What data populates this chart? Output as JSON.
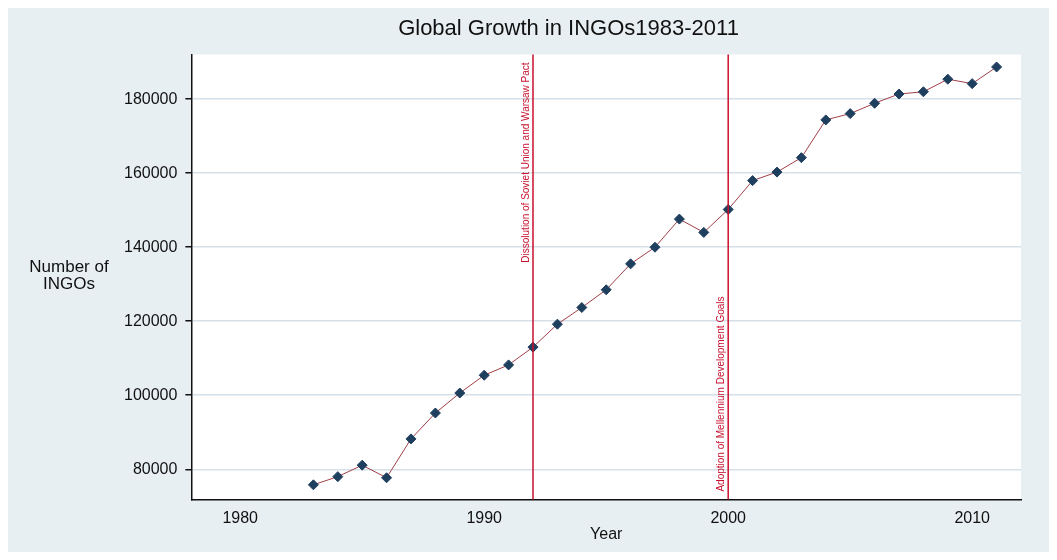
{
  "chart_data": {
    "type": "line",
    "title": "Global Growth in INGOs1983-2011",
    "xlabel": "Year",
    "ylabel": "Number of INGOs",
    "x": [
      1983,
      1984,
      1985,
      1986,
      1987,
      1988,
      1989,
      1990,
      1991,
      1992,
      1993,
      1994,
      1995,
      1996,
      1997,
      1998,
      1999,
      2000,
      2001,
      2002,
      2003,
      2004,
      2005,
      2006,
      2007,
      2008,
      2009,
      2010,
      2011
    ],
    "series": [
      {
        "color": "#1f3f5f",
        "values": [
          75800,
          78000,
          81100,
          77700,
          88200,
          95200,
          100600,
          105400,
          108200,
          113000,
          119200,
          123700,
          128500,
          135500,
          140000,
          147600,
          144000,
          150200,
          158000,
          160300,
          164200,
          174400,
          176100,
          178900,
          181400,
          182000,
          185400,
          184200,
          188700
        ]
      }
    ],
    "xlim": [
      1978,
      2012
    ],
    "xticks": [
      1980,
      1990,
      2000,
      2010
    ],
    "ylim": [
      71800,
      192100
    ],
    "yticks": [
      80000,
      100000,
      120000,
      140000,
      160000,
      180000
    ],
    "grid": "y",
    "marker": "diamond",
    "line_style": "solid",
    "ref_lines": [
      {
        "axis": "x",
        "value": 1992,
        "label": "Dissolution of Soviet Union and Warsaw Pact",
        "color": "#c8102e"
      },
      {
        "axis": "x",
        "value": 2000,
        "label": "Adoption of Mellennium Development Goals",
        "color": "#c8102e"
      }
    ]
  }
}
